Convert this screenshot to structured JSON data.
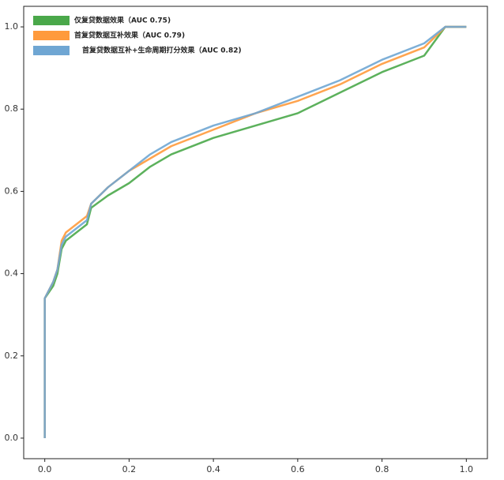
{
  "chart_data": {
    "type": "line",
    "x": [
      0,
      0,
      0,
      0.02,
      0.03,
      0.04,
      0.05,
      0.1,
      0.11,
      0.15,
      0.2,
      0.25,
      0.3,
      0.4,
      0.5,
      0.6,
      0.7,
      0.8,
      0.9,
      0.95,
      1.0
    ],
    "series": [
      {
        "name": "仅复贷数据效果（AUC 0.75)",
        "color": "#4aa84a",
        "values": [
          0,
          0.11,
          0.34,
          0.37,
          0.4,
          0.46,
          0.48,
          0.52,
          0.56,
          0.59,
          0.62,
          0.66,
          0.69,
          0.73,
          0.76,
          0.79,
          0.84,
          0.89,
          0.93,
          1.0,
          1.0
        ]
      },
      {
        "name": "首复贷数据互补效果（AUC 0.79)",
        "color": "#ff9a3c",
        "values": [
          0,
          0.11,
          0.34,
          0.38,
          0.41,
          0.48,
          0.5,
          0.54,
          0.57,
          0.61,
          0.65,
          0.68,
          0.71,
          0.75,
          0.79,
          0.82,
          0.86,
          0.91,
          0.95,
          1.0,
          1.0
        ]
      },
      {
        "name": "首复贷数据互补+生命周期打分效果（AUC 0.82)",
        "color": "#6fa6d3",
        "values": [
          0,
          0.11,
          0.34,
          0.38,
          0.41,
          0.47,
          0.49,
          0.53,
          0.57,
          0.61,
          0.65,
          0.69,
          0.72,
          0.76,
          0.79,
          0.83,
          0.87,
          0.92,
          0.96,
          1.0,
          1.0
        ]
      }
    ],
    "xlim": [
      -0.05,
      1.05
    ],
    "ylim": [
      -0.05,
      1.05
    ],
    "xticks": [
      {
        "value": 0,
        "label": "0.0"
      },
      0.2,
      0.4,
      0.6,
      0.8,
      {
        "value": 1,
        "label": "1.0"
      }
    ],
    "yticks": [
      {
        "value": 0,
        "label": "0.0"
      },
      0.2,
      0.4,
      0.6,
      0.8,
      {
        "value": 1,
        "label": "1.0"
      }
    ],
    "grid": false,
    "legend": "upper left"
  }
}
